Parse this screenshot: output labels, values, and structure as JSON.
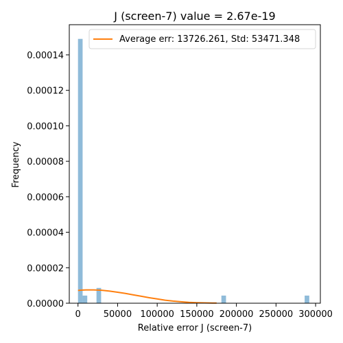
{
  "chart_data": {
    "type": "bar",
    "title": "J (screen-7) value = 2.67e-19",
    "xlabel": "Relative error J (screen-7)",
    "ylabel": "Frequency",
    "xlim": [
      -11000,
      306000
    ],
    "ylim": [
      0,
      0.000157
    ],
    "xticks": [
      0,
      50000,
      100000,
      150000,
      200000,
      250000,
      300000
    ],
    "yticks": [
      0,
      2e-05,
      4e-05,
      6e-05,
      8e-05,
      0.0001,
      0.00012,
      0.00014
    ],
    "xtick_labels": [
      "0",
      "50000",
      "100000",
      "150000",
      "200000",
      "250000",
      "300000"
    ],
    "ytick_labels": [
      "0.00000",
      "0.00002",
      "0.00004",
      "0.00006",
      "0.00008",
      "0.00010",
      "0.00012",
      "0.00014"
    ],
    "histogram": {
      "bin_width": 5840,
      "bins": [
        {
          "x0": 0,
          "x1": 5840,
          "y": 0.000149
        },
        {
          "x0": 5840,
          "x1": 11680,
          "y": 4.3e-06
        },
        {
          "x0": 23360,
          "x1": 29200,
          "y": 8.6e-06
        },
        {
          "x0": 181040,
          "x1": 186880,
          "y": 4.3e-06
        },
        {
          "x0": 286160,
          "x1": 292000,
          "y": 4.3e-06
        }
      ],
      "color": "#8fbbd9"
    },
    "kde": {
      "name": "Average err: 13726.261, Std: 53471.348",
      "color": "#ff7f0e",
      "x": [
        0,
        5000,
        10000,
        20000,
        30000,
        40000,
        50000,
        60000,
        70000,
        80000,
        90000,
        100000,
        110000,
        120000,
        130000,
        140000,
        150000,
        160000,
        170000,
        175000
      ],
      "y": [
        7.2e-06,
        7.4e-06,
        7.5e-06,
        7.5e-06,
        7.3e-06,
        6.8e-06,
        6.2e-06,
        5.5e-06,
        4.7e-06,
        3.9e-06,
        3.1e-06,
        2.4e-06,
        1.7e-06,
        1.2e-06,
        8e-07,
        5e-07,
        3e-07,
        2e-07,
        1e-07,
        1e-07
      ]
    },
    "legend": "top-right",
    "grid": false
  }
}
